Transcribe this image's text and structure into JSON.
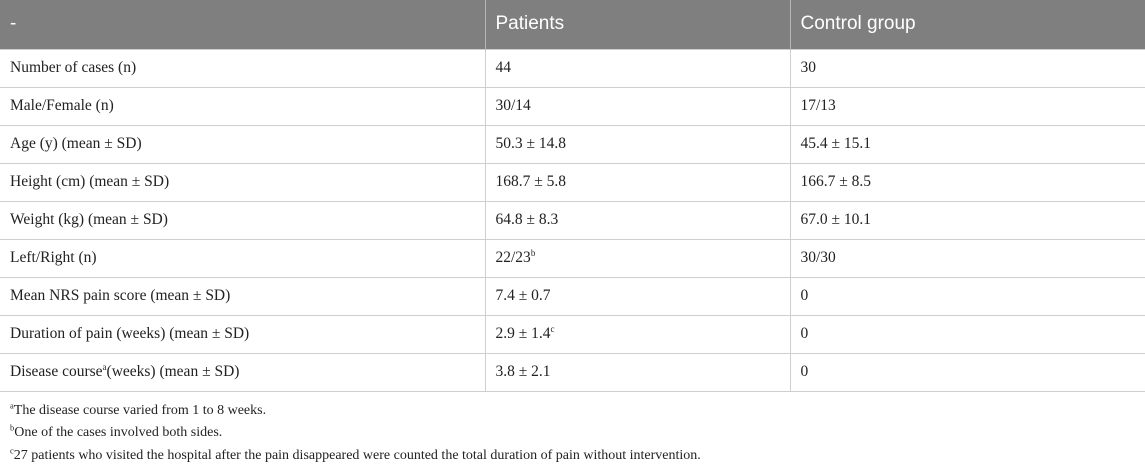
{
  "table": {
    "headers": [
      "-",
      "Patients",
      "Control group"
    ],
    "rows": [
      {
        "label": "Number of cases (n)",
        "label_sup": "",
        "label_rest": "",
        "patients": "44",
        "patients_sup": "",
        "control": "30"
      },
      {
        "label": "Male/Female (n)",
        "label_sup": "",
        "label_rest": "",
        "patients": "30/14",
        "patients_sup": "",
        "control": "17/13"
      },
      {
        "label": "Age (y) (mean ± SD)",
        "label_sup": "",
        "label_rest": "",
        "patients": "50.3 ± 14.8",
        "patients_sup": "",
        "control": "45.4 ± 15.1"
      },
      {
        "label": "Height (cm) (mean ± SD)",
        "label_sup": "",
        "label_rest": "",
        "patients": "168.7 ± 5.8",
        "patients_sup": "",
        "control": "166.7 ± 8.5"
      },
      {
        "label": "Weight (kg) (mean ± SD)",
        "label_sup": "",
        "label_rest": "",
        "patients": "64.8 ± 8.3",
        "patients_sup": "",
        "control": "67.0 ± 10.1"
      },
      {
        "label": "Left/Right (n)",
        "label_sup": "",
        "label_rest": "",
        "patients": "22/23",
        "patients_sup": "b",
        "control": "30/30"
      },
      {
        "label": "Mean NRS pain score (mean ± SD)",
        "label_sup": "",
        "label_rest": "",
        "patients": "7.4 ± 0.7",
        "patients_sup": "",
        "control": "0"
      },
      {
        "label": "Duration of pain (weeks) (mean ± SD)",
        "label_sup": "",
        "label_rest": "",
        "patients": "2.9 ± 1.4",
        "patients_sup": "c",
        "control": "0"
      },
      {
        "label": "Disease course",
        "label_sup": "a",
        "label_rest": "(weeks) (mean ± SD)",
        "patients": "3.8 ± 2.1",
        "patients_sup": "",
        "control": "0"
      }
    ]
  },
  "footnotes": [
    {
      "mark": "a",
      "text": "The disease course varied from 1 to 8 weeks."
    },
    {
      "mark": "b",
      "text": "One of the cases involved both sides."
    },
    {
      "mark": "c",
      "text": "27 patients who visited the hospital after the pain disappeared were counted the total duration of pain without intervention."
    }
  ]
}
